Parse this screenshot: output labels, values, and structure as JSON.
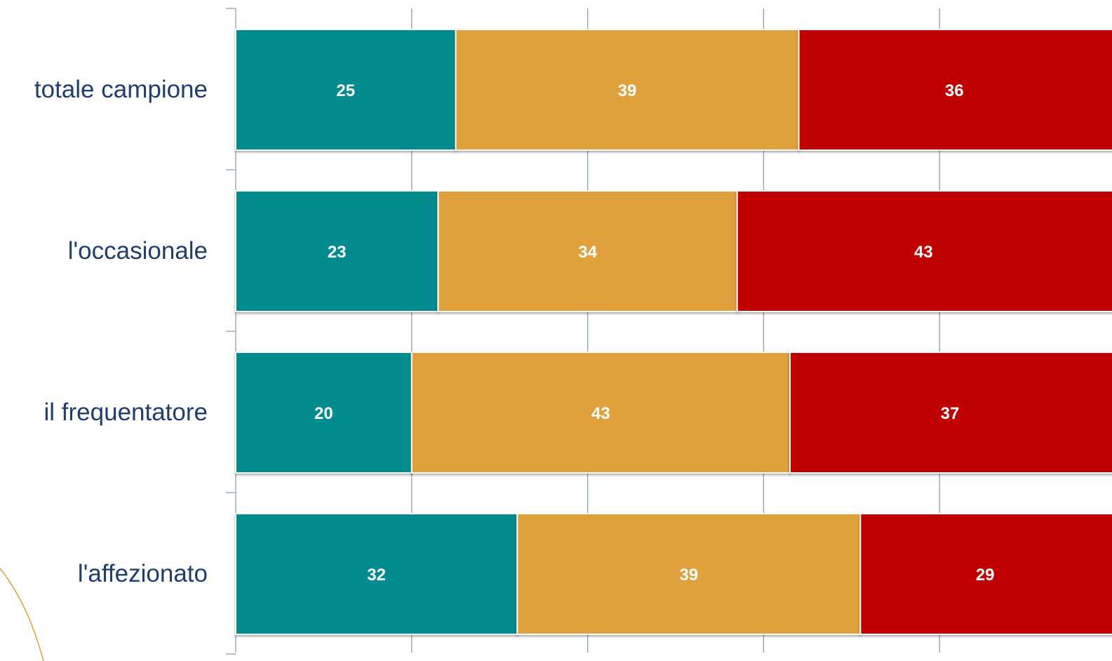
{
  "chart_data": {
    "type": "bar",
    "orientation": "horizontal",
    "stacked": true,
    "categories": [
      "totale campione",
      "l'occasionale",
      "il frequentatore",
      "l'affezionato"
    ],
    "series": [
      {
        "values": [
          25,
          23,
          20,
          32
        ],
        "color": "#008C8F"
      },
      {
        "values": [
          39,
          34,
          43,
          39
        ],
        "color": "#E0A03B"
      },
      {
        "values": [
          36,
          43,
          37,
          29
        ],
        "color": "#C00000"
      }
    ],
    "xlim": [
      0,
      100
    ],
    "grid": false,
    "legend": "none"
  }
}
